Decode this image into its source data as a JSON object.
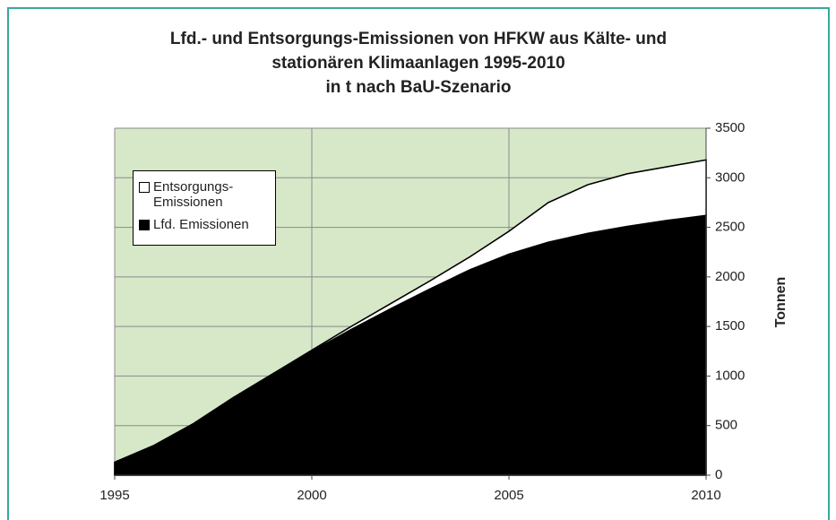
{
  "chart_data": {
    "type": "stacked_area",
    "title": "Lfd.- und Entsorgungs-Emissionen von HFKW aus Kälte- und stationären Klimaanlagen 1995-2010",
    "subtitle": "in t nach BaU-Szenario",
    "y_axis_label": "Tonnen",
    "x": [
      1995,
      1996,
      1997,
      1998,
      1999,
      2000,
      2001,
      2002,
      2003,
      2004,
      2005,
      2006,
      2007,
      2008,
      2009,
      2010
    ],
    "series": [
      {
        "name": "Lfd. Emissionen",
        "color": "#000000",
        "values": [
          130,
          300,
          520,
          780,
          1020,
          1250,
          1470,
          1680,
          1880,
          2070,
          2230,
          2350,
          2440,
          2510,
          2570,
          2620
        ]
      },
      {
        "name": "Entsorgungs-Emissionen",
        "color": "#ffffff",
        "values": [
          0,
          0,
          0,
          0,
          0,
          10,
          30,
          50,
          80,
          130,
          230,
          400,
          490,
          530,
          540,
          560
        ]
      }
    ],
    "legend_order": [
      1,
      0
    ],
    "xlim": [
      1995,
      2010
    ],
    "xticks": [
      1995,
      2000,
      2005,
      2010
    ],
    "ylim": [
      0,
      3500
    ],
    "yticks": [
      0,
      500,
      1000,
      1500,
      2000,
      2500,
      3000,
      3500
    ],
    "grid": true,
    "y_axis_side": "right",
    "legend_position": "upper left",
    "plot_background": "#d6e8c8"
  }
}
